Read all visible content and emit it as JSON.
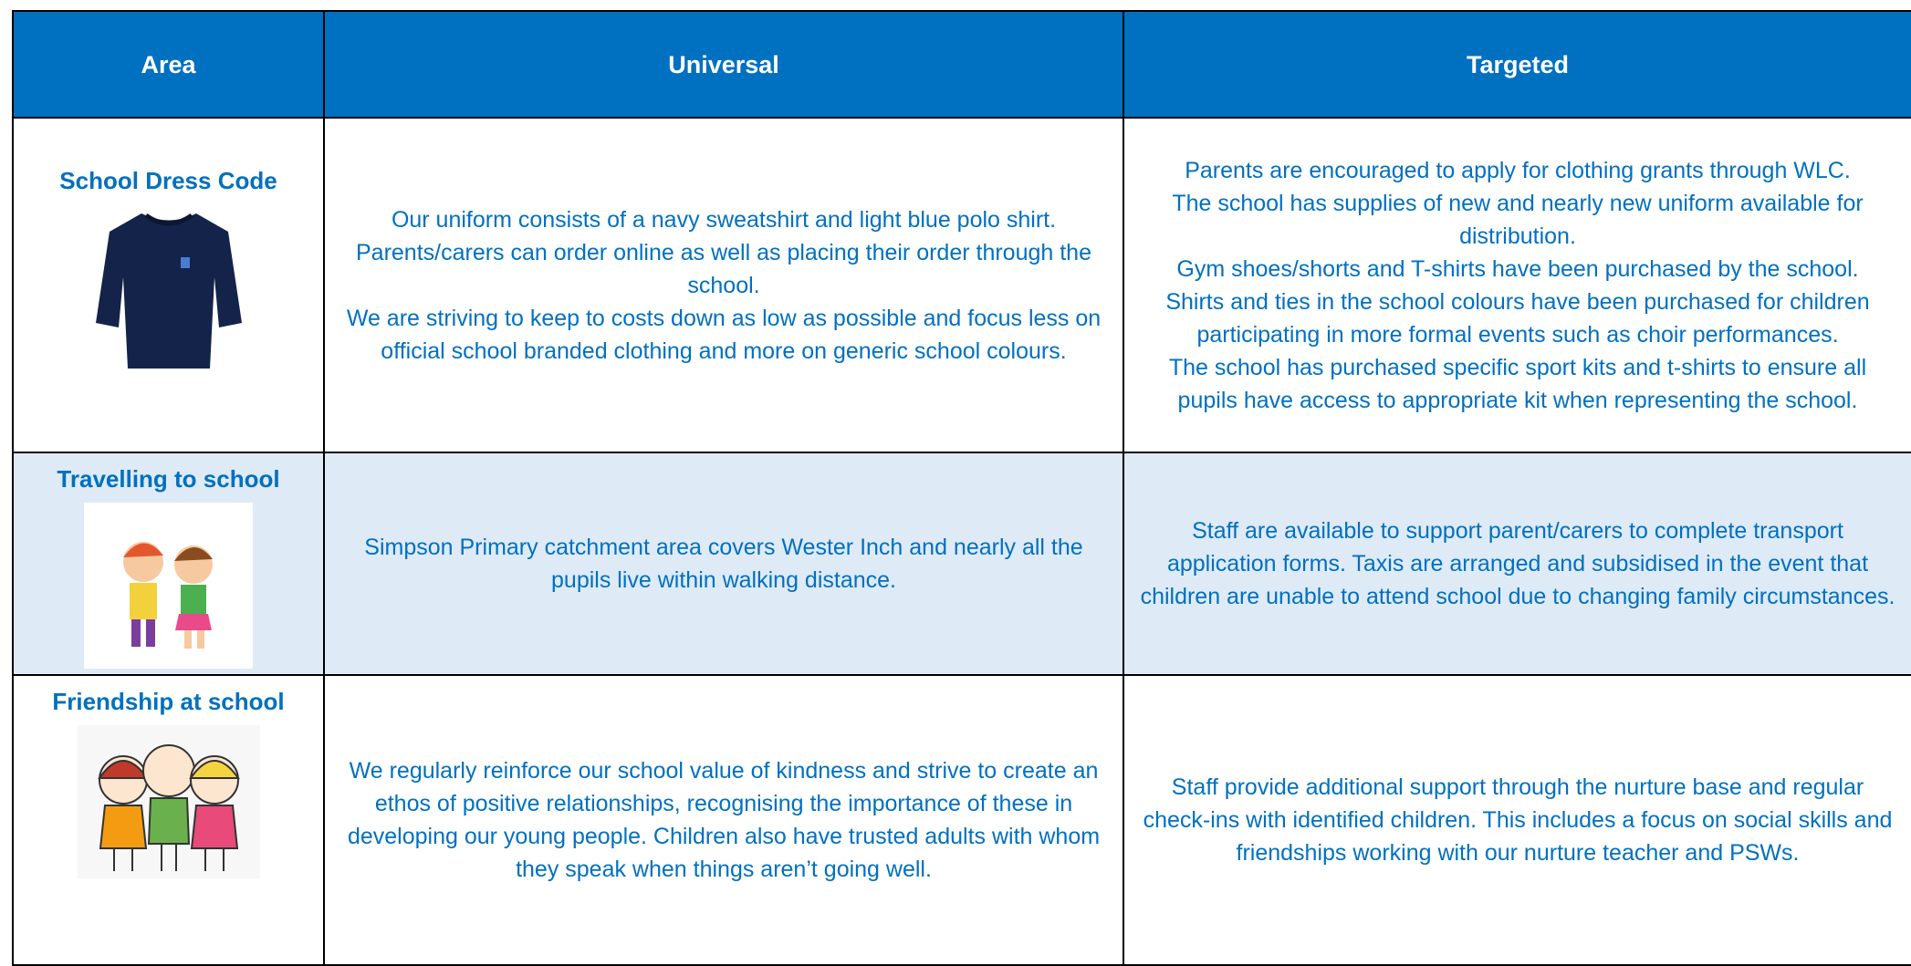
{
  "table": {
    "headers": [
      "Area",
      "Universal",
      "Targeted"
    ],
    "rows": [
      {
        "area": "School Dress Code",
        "universal": [
          "Our uniform consists of a navy sweatshirt and light blue polo shirt.",
          "Parents/carers can order online as well as placing their order through the school.",
          "We are striving to keep to costs down as low as possible and focus less on official school branded clothing and more on generic school colours."
        ],
        "targeted": [
          "Parents are encouraged to apply for clothing grants through WLC.",
          "The school has supplies of new and nearly new uniform available for distribution.",
          "Gym shoes/shorts and T-shirts have been purchased by the school.",
          "Shirts and ties in the school colours have been purchased for children participating in more formal events such as choir performances.",
          "The school has purchased specific sport kits and t-shirts to ensure all pupils have access to appropriate kit when representing the school."
        ]
      },
      {
        "area": "Travelling to school",
        "universal": [
          "Simpson Primary catchment area covers Wester Inch and nearly all the pupils live within walking distance."
        ],
        "targeted": [
          "Staff are available to support parent/carers to complete transport application forms.  Taxis are arranged and subsidised in the event that children are unable to attend school due to changing family circumstances."
        ]
      },
      {
        "area": "Friendship at school",
        "universal": [
          "We regularly reinforce our school value of kindness and strive to create an ethos of positive relationships, recognising the importance of these in developing our young people.  Children also have trusted adults with whom they speak when things aren’t going well."
        ],
        "targeted": [
          "Staff provide additional support through the nurture base and regular check-ins with identified children.  This includes a focus on social skills and friendships working with our nurture teacher and PSWs."
        ]
      }
    ]
  }
}
